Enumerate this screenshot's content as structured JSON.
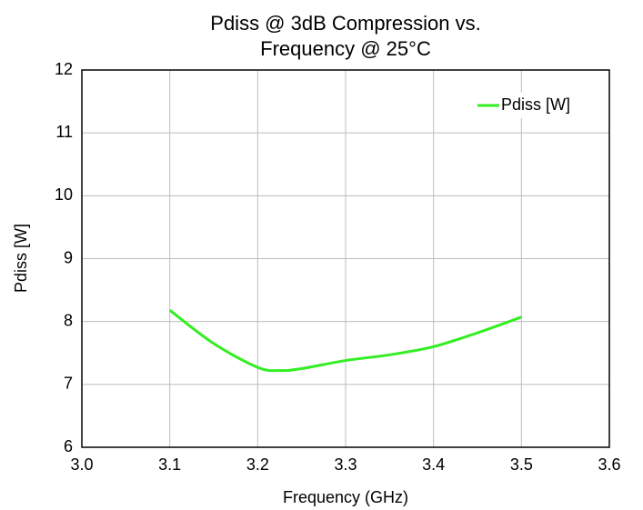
{
  "chart_data": {
    "type": "line",
    "title": [
      "Pdiss @ 3dB Compression vs.",
      "Frequency @ 25°C"
    ],
    "x_label": "Frequency (GHz)",
    "y_label": "Pdiss [W]",
    "x": [
      3.1,
      3.15,
      3.2,
      3.225,
      3.25,
      3.3,
      3.35,
      3.4,
      3.45,
      3.5
    ],
    "series": [
      {
        "name": "Pdiss [W]",
        "color": "#33ee22",
        "values": [
          8.18,
          7.65,
          7.27,
          7.22,
          7.25,
          7.38,
          7.47,
          7.6,
          7.82,
          8.07
        ]
      }
    ],
    "xlim": [
      3.0,
      3.6
    ],
    "xticks": [
      {
        "value": 3,
        "label": "3.0"
      },
      3.1,
      3.2,
      3.3,
      3.4,
      3.5,
      3.6
    ],
    "ylim": [
      6,
      12
    ],
    "yticks": [
      6,
      7,
      8,
      9,
      10,
      11,
      12
    ],
    "grid": true,
    "legend": "top-right"
  }
}
